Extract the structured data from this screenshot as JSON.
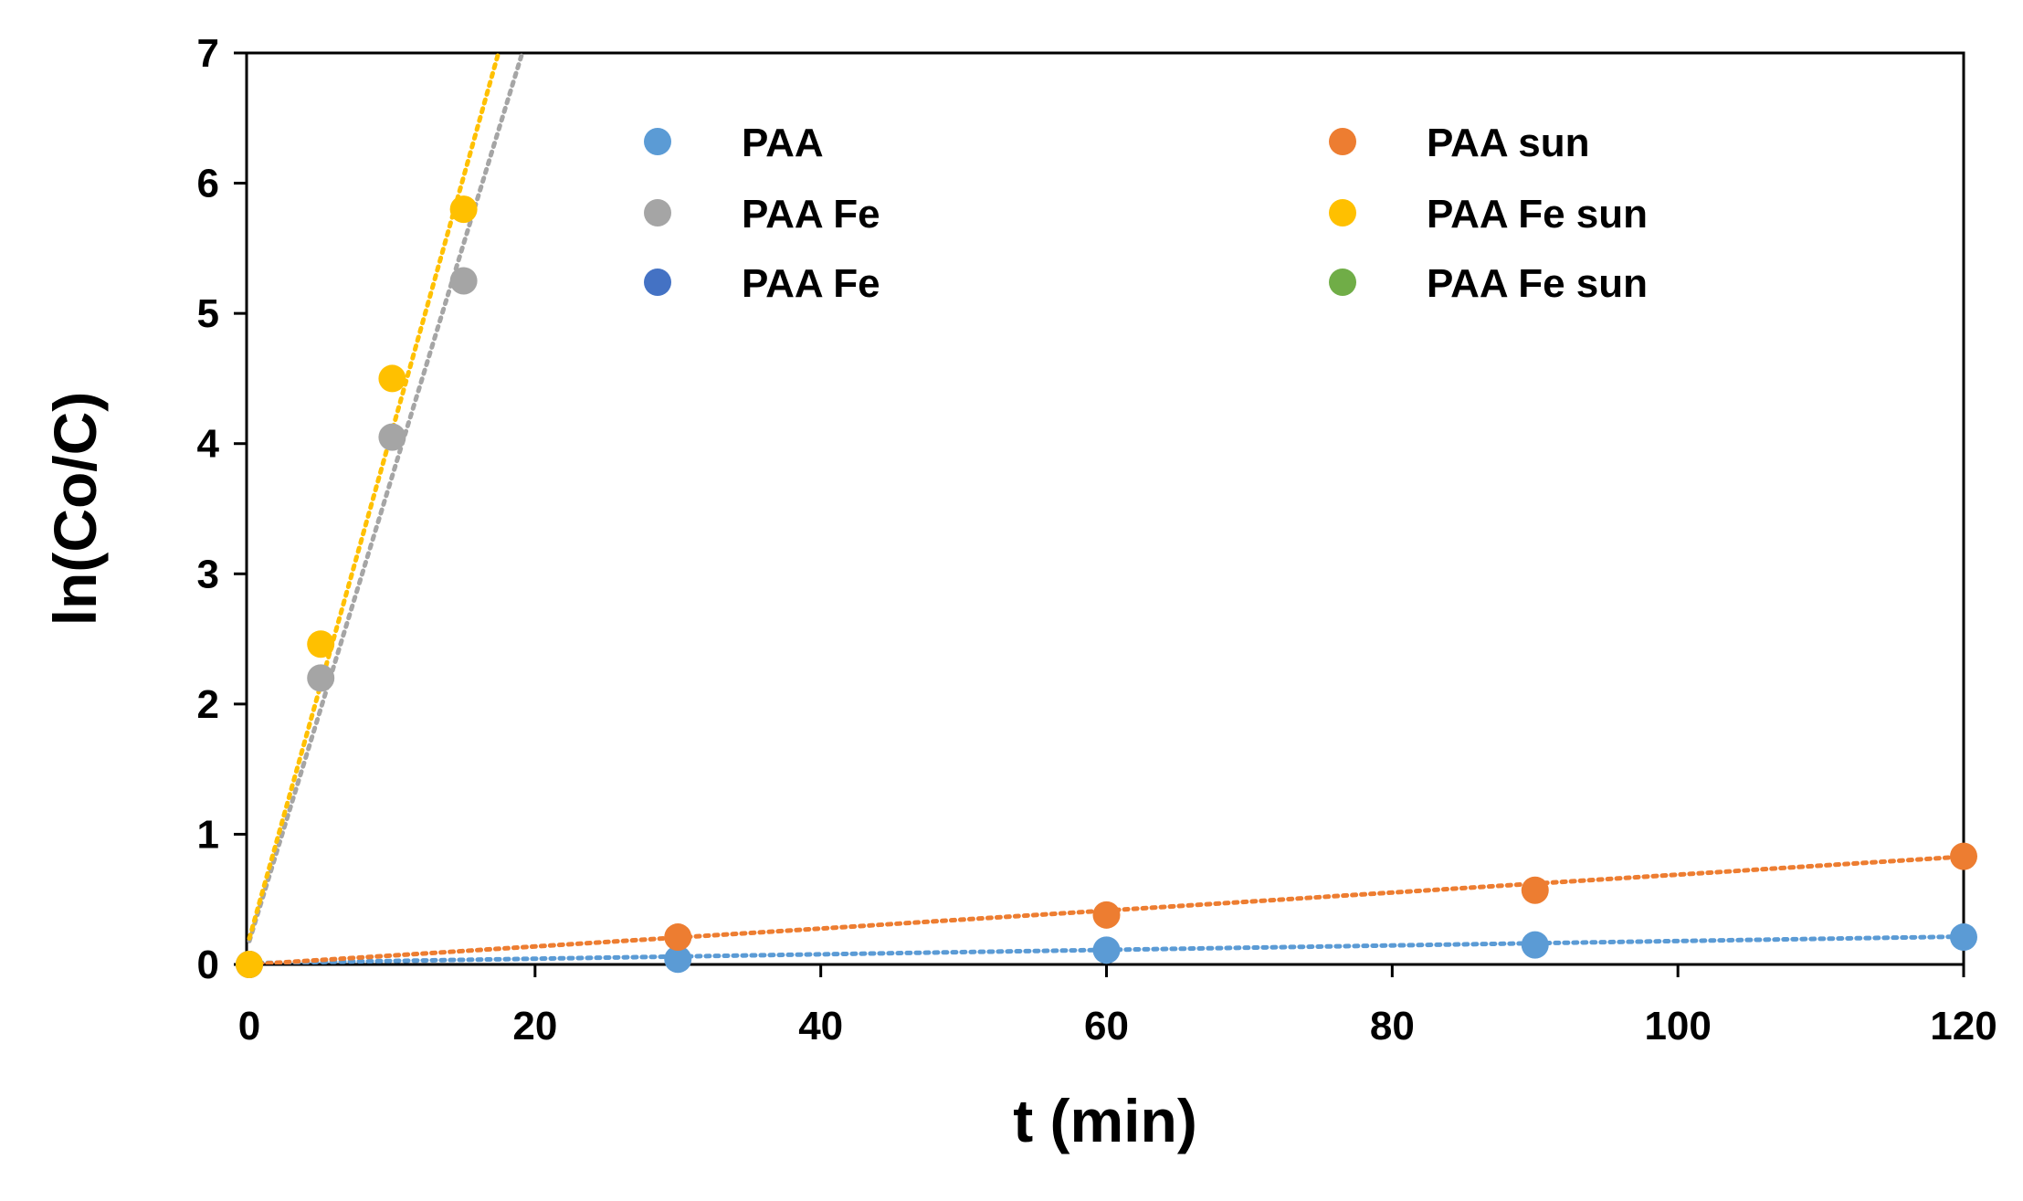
{
  "chart_data": {
    "type": "scatter",
    "title": "",
    "xlabel": "t (min)",
    "ylabel": "ln(Co/C)",
    "xlim": [
      0,
      120
    ],
    "ylim": [
      0,
      7
    ],
    "xticks": [
      0,
      20,
      40,
      60,
      80,
      100,
      120
    ],
    "yticks": [
      0,
      1,
      2,
      3,
      4,
      5,
      6,
      7
    ],
    "grid": false,
    "legend_position": "top-center",
    "series": [
      {
        "name": "PAA",
        "color": "#5b9bd5",
        "x": [
          0,
          30,
          60,
          90,
          120
        ],
        "y": [
          0,
          0.04,
          0.11,
          0.15,
          0.21
        ],
        "trendline": {
          "slope": 0.0017,
          "intercept": 0.01
        }
      },
      {
        "name": "PAA sun",
        "color": "#ed7d31",
        "x": [
          0,
          30,
          60,
          90,
          120
        ],
        "y": [
          0,
          0.21,
          0.38,
          0.57,
          0.83
        ],
        "trendline": {
          "slope": 0.0069,
          "intercept": 0.0
        }
      },
      {
        "name": "PAA Fe",
        "color": "#a5a5a5",
        "x": [
          0,
          5,
          10,
          15
        ],
        "y": [
          0,
          2.2,
          4.05,
          5.25
        ],
        "trendline": {
          "slope": 0.357,
          "intercept": 0.18
        }
      },
      {
        "name": "PAA Fe sun",
        "color": "#ffc000",
        "x": [
          0,
          5,
          10,
          15
        ],
        "y": [
          0,
          2.46,
          4.5,
          5.8
        ],
        "trendline": {
          "slope": 0.39,
          "intercept": 0.2
        }
      },
      {
        "name": "PAA Fe",
        "color": "#4472c4",
        "x": [],
        "y": []
      },
      {
        "name": "PAA Fe sun",
        "color": "#70ad47",
        "x": [],
        "y": []
      }
    ],
    "legend": [
      {
        "label": "PAA",
        "color": "#5b9bd5"
      },
      {
        "label": "PAA sun",
        "color": "#ed7d31"
      },
      {
        "label": "PAA Fe",
        "color": "#a5a5a5"
      },
      {
        "label": "PAA Fe sun",
        "color": "#ffc000"
      },
      {
        "label": "PAA Fe",
        "color": "#4472c4"
      },
      {
        "label": "PAA Fe sun",
        "color": "#70ad47"
      }
    ]
  }
}
